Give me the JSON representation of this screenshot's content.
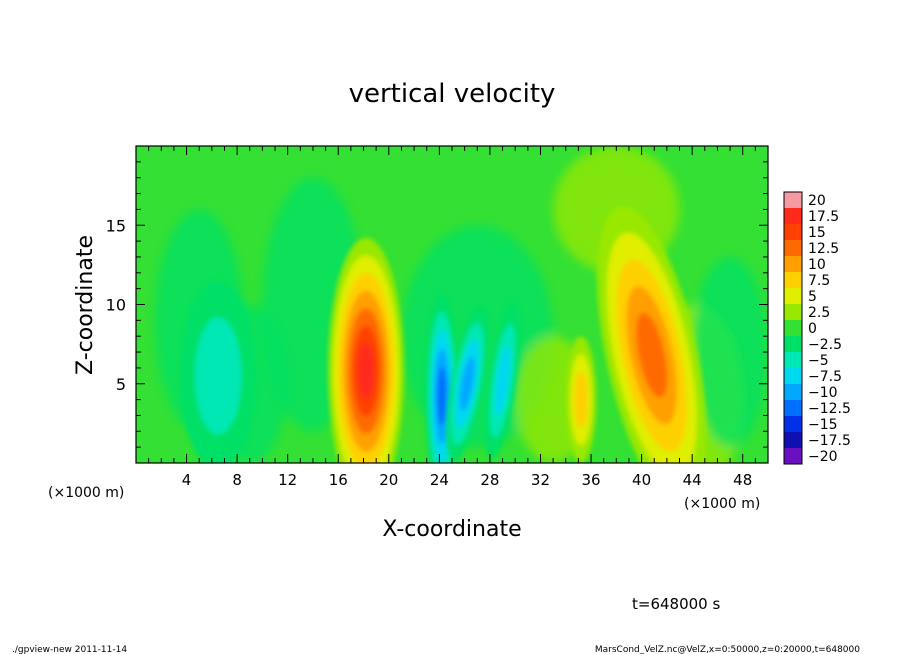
{
  "chart_data": {
    "type": "heatmap",
    "title": "vertical velocity",
    "xlabel": "X-coordinate",
    "ylabel": "Z-coordinate",
    "x_unit_left": "(×1000 m)",
    "x_unit_right": "(×1000 m)",
    "xlim": [
      0,
      50
    ],
    "ylim": [
      0,
      20
    ],
    "x_ticks": [
      4,
      8,
      12,
      16,
      20,
      24,
      28,
      32,
      36,
      40,
      44,
      48
    ],
    "x_tick_labels": [
      "4",
      "8",
      "12",
      "16",
      "20",
      "24",
      "28",
      "32",
      "36",
      "40",
      "44",
      "48"
    ],
    "y_ticks": [
      5,
      10,
      15
    ],
    "y_tick_labels": [
      "5",
      "10",
      "15"
    ],
    "colorbar": {
      "levels": [
        "20",
        "17.5",
        "15",
        "12.5",
        "10",
        "7.5",
        "5",
        "2.5",
        "0",
        "−2.5",
        "−5",
        "−7.5",
        "−10",
        "−12.5",
        "−15",
        "−17.5",
        "−20"
      ],
      "colors": [
        "#f59aa0",
        "#ff2a1a",
        "#ff4000",
        "#ff6a00",
        "#ffa000",
        "#ffd000",
        "#e0ee00",
        "#99e800",
        "#33e033",
        "#00e066",
        "#00e8b4",
        "#00d8f0",
        "#00a8ff",
        "#0070ff",
        "#0030e8",
        "#1010b0",
        "#6a10c0"
      ]
    },
    "field_features": [
      {
        "kind": "max",
        "x_km": 18.2,
        "z_km": 5.8,
        "value": 17.5
      },
      {
        "kind": "max",
        "x_km": 40.8,
        "z_km": 6.8,
        "value": 12.5
      },
      {
        "kind": "max",
        "x_km": 35.2,
        "z_km": 4.0,
        "value": 7.5
      },
      {
        "kind": "min",
        "x_km": 24.2,
        "z_km": 4.2,
        "value": -12.5
      },
      {
        "kind": "min",
        "x_km": 26.2,
        "z_km": 5.0,
        "value": -10
      },
      {
        "kind": "min",
        "x_km": 29.0,
        "z_km": 5.2,
        "value": -7.5
      },
      {
        "kind": "min",
        "x_km": 6.5,
        "z_km": 5.5,
        "value": -5
      }
    ]
  },
  "time_label": "t=648000 s",
  "footer": {
    "left": "./gpview-new  2011-11-14",
    "right": "MarsCond_VelZ.nc@VelZ,x=0:50000,z=0:20000,t=648000"
  }
}
